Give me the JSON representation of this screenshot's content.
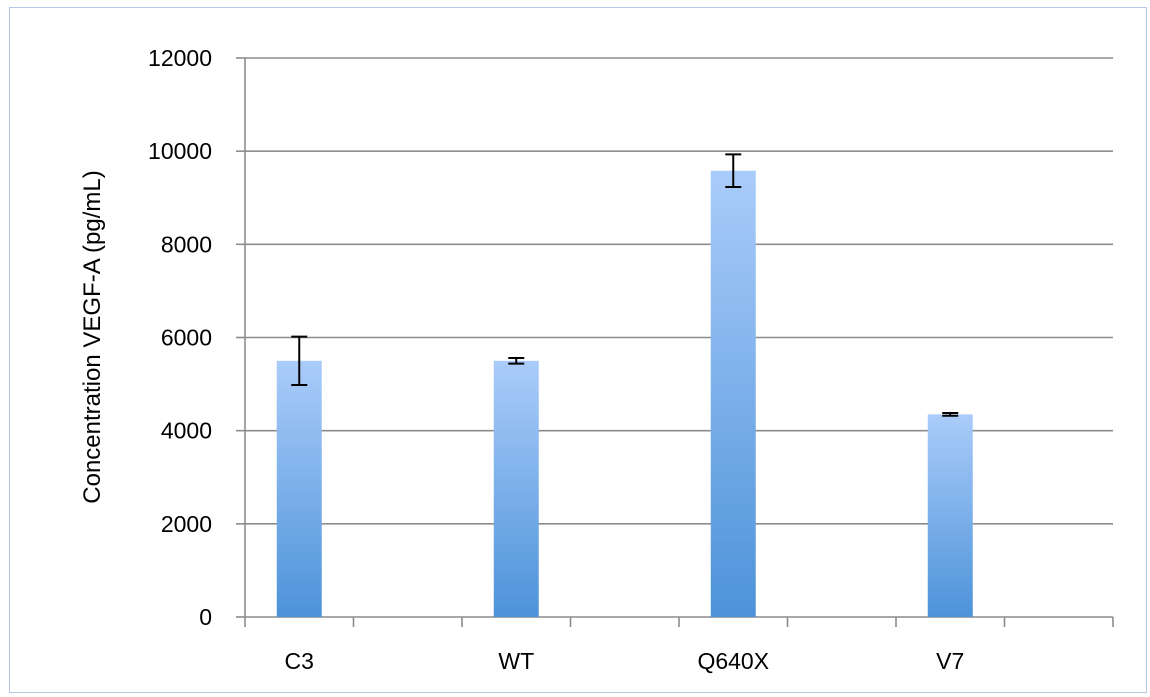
{
  "chart_data": {
    "type": "bar",
    "title": "",
    "xlabel": "",
    "ylabel": "Concentration VEGF-A (pg/mL)",
    "categories": [
      "C3",
      "WT",
      "Q640X",
      "V7"
    ],
    "values": [
      5500,
      5500,
      9580,
      4350
    ],
    "errors": [
      520,
      60,
      350,
      30
    ],
    "ylim": [
      0,
      12000
    ],
    "yticks": [
      0,
      2000,
      4000,
      6000,
      8000,
      10000,
      12000
    ],
    "grid": true,
    "legend": "none",
    "colors": {
      "bar_top": "#aaccfa",
      "bar_bottom": "#4d93d9",
      "grid": "#8c8c8c",
      "axis": "#8c8c8c",
      "error_bar": "#000000",
      "frame": "#b4c7e7"
    }
  }
}
